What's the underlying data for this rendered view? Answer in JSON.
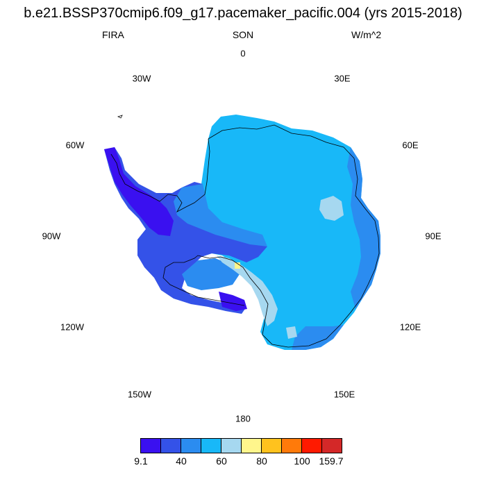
{
  "header": {
    "title": "b.e21.BSSP370cmip6.f09_g17.pacemaker_pacific.004 (yrs 2015-2018)",
    "variable": "FIRA",
    "season": "SON",
    "units": "W/m^2"
  },
  "longitude_labels": [
    {
      "id": "lon-0",
      "text": "0"
    },
    {
      "id": "lon-30e",
      "text": "30E"
    },
    {
      "id": "lon-60e",
      "text": "60E"
    },
    {
      "id": "lon-90e",
      "text": "90E"
    },
    {
      "id": "lon-120e",
      "text": "120E"
    },
    {
      "id": "lon-150e",
      "text": "150E"
    },
    {
      "id": "lon-180",
      "text": "180"
    },
    {
      "id": "lon-150w",
      "text": "150W"
    },
    {
      "id": "lon-120w",
      "text": "120W"
    },
    {
      "id": "lon-90w",
      "text": "90W"
    },
    {
      "id": "lon-60w",
      "text": "60W"
    },
    {
      "id": "lon-30w",
      "text": "30W"
    }
  ],
  "colorbar": {
    "colors": [
      "#3a10f0",
      "#3452e8",
      "#2b8cf0",
      "#18b8f8",
      "#a6d8f0",
      "#fff68c",
      "#ffc21e",
      "#ff7a0a",
      "#ff1a00",
      "#d42828"
    ],
    "tick_labels": [
      "9.1",
      "40",
      "60",
      "80",
      "100",
      "159.7"
    ]
  }
}
